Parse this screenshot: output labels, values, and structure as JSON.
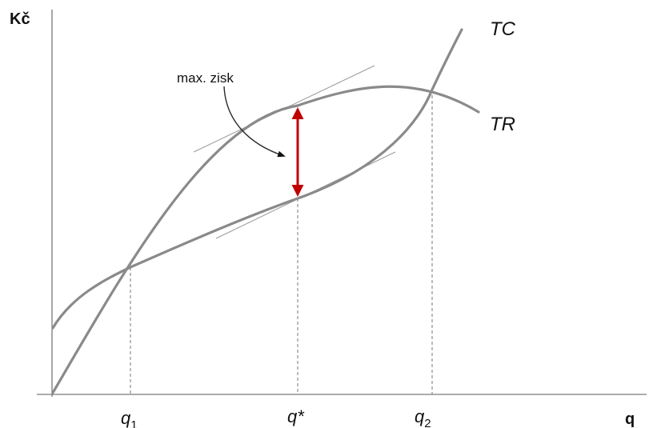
{
  "diagram": {
    "y_axis_label": "Kč",
    "x_axis_label": "q",
    "curves": {
      "tc_label": "TC",
      "tr_label": "TR"
    },
    "x_ticks": {
      "q1": {
        "base": "q",
        "sub": "1"
      },
      "q_star": {
        "text": "q*"
      },
      "q2": {
        "base": "q",
        "sub": "2"
      }
    },
    "annotation": "max. zisk",
    "colors": {
      "curves": "#8a8a8a",
      "axes": "#7a7a7a",
      "profit_arrow": "#c00000",
      "text": "#111111"
    }
  }
}
